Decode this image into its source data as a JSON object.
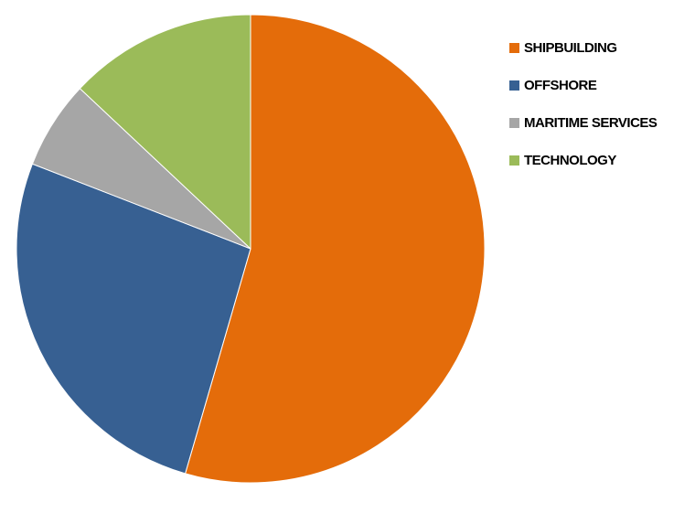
{
  "chart_data": {
    "type": "pie",
    "title": "",
    "labels": [
      "SHIPBUILDING",
      "OFFSHORE",
      "MARITIME SERVICES",
      "TECHNOLOGY"
    ],
    "values": [
      54.5,
      26.4,
      6.1,
      13.0
    ],
    "unit": "%",
    "colors": [
      "#E46C0A",
      "#376092",
      "#A6A6A6",
      "#9BBB59"
    ],
    "start_angle_deg": 0,
    "direction": "clockwise",
    "legend_position": "right"
  },
  "legend": {
    "items": [
      {
        "label": "SHIPBUILDING",
        "color": "#E46C0A"
      },
      {
        "label": "OFFSHORE",
        "color": "#376092"
      },
      {
        "label": "MARITIME SERVICES",
        "color": "#A6A6A6"
      },
      {
        "label": "TECHNOLOGY",
        "color": "#9BBB59"
      }
    ]
  }
}
